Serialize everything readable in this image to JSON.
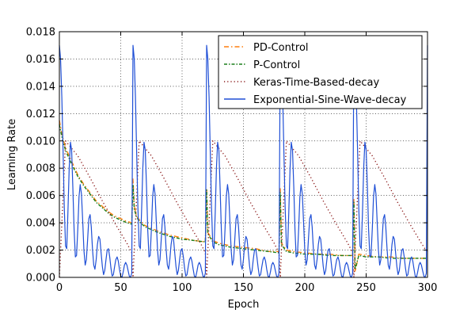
{
  "chart_data": {
    "type": "line",
    "title": "",
    "xlabel": "Epoch",
    "ylabel": "Learning Rate",
    "xlim": [
      0,
      300
    ],
    "ylim": [
      0,
      0.018
    ],
    "xticks": [
      0,
      50,
      100,
      150,
      200,
      250,
      300
    ],
    "xtick_labels": [
      "0",
      "50",
      "100",
      "150",
      "200",
      "250",
      "300"
    ],
    "yticks": [
      0,
      0.002,
      0.004,
      0.006,
      0.008,
      0.01,
      0.012,
      0.014,
      0.016,
      0.018
    ],
    "ytick_labels": [
      "0.000",
      "0.002",
      "0.004",
      "0.006",
      "0.008",
      "0.010",
      "0.012",
      "0.014",
      "0.016",
      "0.018"
    ],
    "grid": true,
    "legend_position": "top-right",
    "series": [
      {
        "name": "PD-Control",
        "color": "#ff7f0e",
        "style": "dashdot",
        "x": [
          0,
          2,
          5,
          10,
          15,
          20,
          25,
          30,
          35,
          40,
          45,
          50,
          55,
          59,
          60,
          61,
          63,
          66,
          70,
          80,
          90,
          100,
          110,
          119,
          120,
          121,
          125,
          130,
          140,
          150,
          160,
          170,
          179,
          180,
          181,
          185,
          190,
          200,
          210,
          220,
          230,
          239,
          240,
          241,
          244,
          250,
          260,
          270,
          280,
          290,
          300
        ],
        "y": [
          0.0115,
          0.0105,
          0.0095,
          0.0085,
          0.0075,
          0.0068,
          0.0062,
          0.0056,
          0.0052,
          0.0048,
          0.0045,
          0.0043,
          0.0041,
          0.004,
          0.0072,
          0.0052,
          0.0045,
          0.0041,
          0.0038,
          0.0034,
          0.0031,
          0.0029,
          0.0027,
          0.0026,
          0.0065,
          0.0033,
          0.0027,
          0.0025,
          0.0023,
          0.0022,
          0.0021,
          0.0019,
          0.0019,
          0.0065,
          0.0025,
          0.002,
          0.0019,
          0.0018,
          0.0017,
          0.0017,
          0.0016,
          0.0016,
          0.0058,
          0.0004,
          0.0017,
          0.0016,
          0.0015,
          0.0015,
          0.0014,
          0.0014,
          0.0014
        ]
      },
      {
        "name": "P-Control",
        "color": "#1a7f1a",
        "style": "dashdot-dense",
        "x": [
          0,
          2,
          5,
          10,
          15,
          20,
          25,
          30,
          35,
          40,
          45,
          50,
          55,
          59,
          60,
          61,
          63,
          66,
          70,
          80,
          90,
          100,
          110,
          119,
          120,
          121,
          125,
          130,
          140,
          150,
          160,
          170,
          179,
          180,
          181,
          185,
          190,
          200,
          210,
          220,
          230,
          239,
          240,
          241,
          244,
          250,
          260,
          270,
          280,
          290,
          300
        ],
        "y": [
          0.0112,
          0.0103,
          0.0093,
          0.0083,
          0.0074,
          0.0067,
          0.0061,
          0.0055,
          0.0051,
          0.0047,
          0.0044,
          0.0042,
          0.004,
          0.0039,
          0.0068,
          0.005,
          0.0044,
          0.004,
          0.0037,
          0.0033,
          0.003,
          0.0028,
          0.0027,
          0.0026,
          0.0064,
          0.0032,
          0.0026,
          0.0024,
          0.0022,
          0.0021,
          0.002,
          0.0019,
          0.0018,
          0.0062,
          0.0024,
          0.0019,
          0.0018,
          0.0017,
          0.0017,
          0.0016,
          0.0016,
          0.0016,
          0.0055,
          0.0006,
          0.0016,
          0.0015,
          0.0015,
          0.0014,
          0.0014,
          0.0014,
          0.0014
        ]
      },
      {
        "name": "Keras-Time-Based-decay",
        "color": "#8b1a1a",
        "style": "dotted",
        "x": [
          0,
          5,
          15,
          25,
          35,
          45,
          55,
          59,
          60,
          65,
          75,
          85,
          95,
          105,
          115,
          119,
          120,
          125,
          135,
          145,
          155,
          165,
          175,
          179,
          180,
          185,
          195,
          205,
          215,
          225,
          235,
          239,
          240,
          245,
          255,
          265,
          275,
          285,
          295,
          300
        ],
        "y": [
          0.0,
          0.01,
          0.0089,
          0.0073,
          0.0056,
          0.004,
          0.0025,
          0.0018,
          0.0,
          0.01,
          0.0089,
          0.0073,
          0.0056,
          0.004,
          0.0025,
          0.0018,
          0.0,
          0.01,
          0.0089,
          0.0073,
          0.0056,
          0.004,
          0.0025,
          0.0018,
          0.0,
          0.01,
          0.0089,
          0.0073,
          0.0056,
          0.004,
          0.0025,
          0.0018,
          0.0,
          0.01,
          0.0089,
          0.0073,
          0.0056,
          0.004,
          0.0025,
          0.0018
        ]
      },
      {
        "name": "Exponential-Sine-Wave-decay",
        "color": "#1f4fd6",
        "style": "solid",
        "x": [
          0,
          1,
          2,
          3,
          4,
          5,
          6,
          7,
          8,
          9,
          10,
          11,
          12,
          13,
          14,
          15,
          16,
          17,
          18,
          19,
          20,
          21,
          22,
          23,
          24,
          25,
          26,
          27,
          28,
          29,
          30,
          31,
          32,
          33,
          34,
          35,
          36,
          37,
          38,
          39,
          40,
          41,
          42,
          43,
          44,
          45,
          46,
          47,
          48,
          49,
          50,
          51,
          52,
          53,
          54,
          55,
          56,
          57,
          58,
          59,
          60,
          61,
          62,
          63,
          64,
          65,
          66,
          67,
          68,
          69,
          70,
          71,
          72,
          73,
          74,
          75,
          76,
          77,
          78,
          79,
          80,
          81,
          82,
          83,
          84,
          85,
          86,
          87,
          88,
          89,
          90,
          91,
          92,
          93,
          94,
          95,
          96,
          97,
          98,
          99,
          100,
          101,
          102,
          103,
          104,
          105,
          106,
          107,
          108,
          109,
          110,
          111,
          112,
          113,
          114,
          115,
          116,
          117,
          118,
          119,
          120,
          121,
          122,
          123,
          124,
          125,
          126,
          127,
          128,
          129,
          130,
          131,
          132,
          133,
          134,
          135,
          136,
          137,
          138,
          139,
          140,
          141,
          142,
          143,
          144,
          145,
          146,
          147,
          148,
          149,
          150,
          151,
          152,
          153,
          154,
          155,
          156,
          157,
          158,
          159,
          160,
          161,
          162,
          163,
          164,
          165,
          166,
          167,
          168,
          169,
          170,
          171,
          172,
          173,
          174,
          175,
          176,
          177,
          178,
          179,
          180,
          181,
          182,
          183,
          184,
          185,
          186,
          187,
          188,
          189,
          190,
          191,
          192,
          193,
          194,
          195,
          196,
          197,
          198,
          199,
          200,
          201,
          202,
          203,
          204,
          205,
          206,
          207,
          208,
          209,
          210,
          211,
          212,
          213,
          214,
          215,
          216,
          217,
          218,
          219,
          220,
          221,
          222,
          223,
          224,
          225,
          226,
          227,
          228,
          229,
          230,
          231,
          232,
          233,
          234,
          235,
          236,
          237,
          238,
          239,
          240,
          241,
          242,
          243,
          244,
          245,
          246,
          247,
          248,
          249,
          250,
          251,
          252,
          253,
          254,
          255,
          256,
          257,
          258,
          259,
          260,
          261,
          262,
          263,
          264,
          265,
          266,
          267,
          268,
          269,
          270,
          271,
          272,
          273,
          274,
          275,
          276,
          277,
          278,
          279,
          280,
          281,
          282,
          283,
          284,
          285,
          286,
          287,
          288,
          289,
          290,
          291,
          292,
          293,
          294,
          295,
          296,
          297,
          298,
          299,
          300
        ],
        "y": [
          0.017,
          0.016,
          0.0132,
          0.0092,
          0.0051,
          0.0023,
          0.0021,
          0.0048,
          0.008,
          0.0099,
          0.0093,
          0.0066,
          0.0035,
          0.0015,
          0.0016,
          0.0036,
          0.0059,
          0.0068,
          0.0061,
          0.0041,
          0.002,
          0.0009,
          0.0013,
          0.0028,
          0.0043,
          0.0046,
          0.0037,
          0.0021,
          0.0009,
          0.0006,
          0.0013,
          0.0024,
          0.003,
          0.0028,
          0.0018,
          0.0008,
          0.0002,
          0.0005,
          0.0013,
          0.002,
          0.0021,
          0.0015,
          0.0007,
          0.0001,
          0.0002,
          0.0008,
          0.0013,
          0.0015,
          0.0012,
          0.0006,
          0.0001,
          0.0,
          0.0004,
          0.0009,
          0.0011,
          0.0009,
          0.0005,
          0.0001,
          0.0,
          0.0003,
          0.017,
          0.016,
          0.0132,
          0.0092,
          0.0051,
          0.0023,
          0.0021,
          0.0048,
          0.008,
          0.0099,
          0.0093,
          0.0066,
          0.0035,
          0.0015,
          0.0016,
          0.0036,
          0.0059,
          0.0068,
          0.0061,
          0.0041,
          0.002,
          0.0009,
          0.0013,
          0.0028,
          0.0043,
          0.0046,
          0.0037,
          0.0021,
          0.0009,
          0.0006,
          0.0013,
          0.0024,
          0.003,
          0.0028,
          0.0018,
          0.0008,
          0.0002,
          0.0005,
          0.0013,
          0.002,
          0.0021,
          0.0015,
          0.0007,
          0.0001,
          0.0002,
          0.0008,
          0.0013,
          0.0015,
          0.0012,
          0.0006,
          0.0001,
          0.0,
          0.0004,
          0.0009,
          0.0011,
          0.0009,
          0.0005,
          0.0001,
          0.0,
          0.0003,
          0.017,
          0.016,
          0.0132,
          0.0092,
          0.0051,
          0.0023,
          0.0021,
          0.0048,
          0.008,
          0.0099,
          0.0093,
          0.0066,
          0.0035,
          0.0015,
          0.0016,
          0.0036,
          0.0059,
          0.0068,
          0.0061,
          0.0041,
          0.002,
          0.0009,
          0.0013,
          0.0028,
          0.0043,
          0.0046,
          0.0037,
          0.0021,
          0.0009,
          0.0006,
          0.0013,
          0.0024,
          0.003,
          0.0028,
          0.0018,
          0.0008,
          0.0002,
          0.0005,
          0.0013,
          0.002,
          0.0021,
          0.0015,
          0.0007,
          0.0001,
          0.0002,
          0.0008,
          0.0013,
          0.0015,
          0.0012,
          0.0006,
          0.0001,
          0.0,
          0.0004,
          0.0009,
          0.0011,
          0.0009,
          0.0005,
          0.0001,
          0.0,
          0.0003,
          0.017,
          0.016,
          0.0132,
          0.0092,
          0.0051,
          0.0023,
          0.0021,
          0.0048,
          0.008,
          0.0099,
          0.0093,
          0.0066,
          0.0035,
          0.0015,
          0.0016,
          0.0036,
          0.0059,
          0.0068,
          0.0061,
          0.0041,
          0.002,
          0.0009,
          0.0013,
          0.0028,
          0.0043,
          0.0046,
          0.0037,
          0.0021,
          0.0009,
          0.0006,
          0.0013,
          0.0024,
          0.003,
          0.0028,
          0.0018,
          0.0008,
          0.0002,
          0.0005,
          0.0013,
          0.002,
          0.0021,
          0.0015,
          0.0007,
          0.0001,
          0.0002,
          0.0008,
          0.0013,
          0.0015,
          0.0012,
          0.0006,
          0.0001,
          0.0,
          0.0004,
          0.0009,
          0.0011,
          0.0009,
          0.0005,
          0.0001,
          0.0,
          0.0003,
          0.017,
          0.016,
          0.0132,
          0.0092,
          0.0051,
          0.0023,
          0.0021,
          0.0048,
          0.008,
          0.0099,
          0.0093,
          0.0066,
          0.0035,
          0.0015,
          0.0016,
          0.0036,
          0.0059,
          0.0068,
          0.0061,
          0.0041,
          0.002,
          0.0009,
          0.0013,
          0.0028,
          0.0043,
          0.0046,
          0.0037,
          0.0021,
          0.0009,
          0.0006,
          0.0013,
          0.0024,
          0.003,
          0.0028,
          0.0018,
          0.0008,
          0.0002,
          0.0005,
          0.0013,
          0.002,
          0.0021,
          0.0015,
          0.0007,
          0.0001,
          0.0002,
          0.0008,
          0.0013,
          0.0015,
          0.0012,
          0.0006,
          0.0001,
          0.0,
          0.0004,
          0.0009,
          0.0011,
          0.0009,
          0.0005,
          0.0001,
          0.0,
          0.0003,
          0.017
        ]
      }
    ]
  }
}
